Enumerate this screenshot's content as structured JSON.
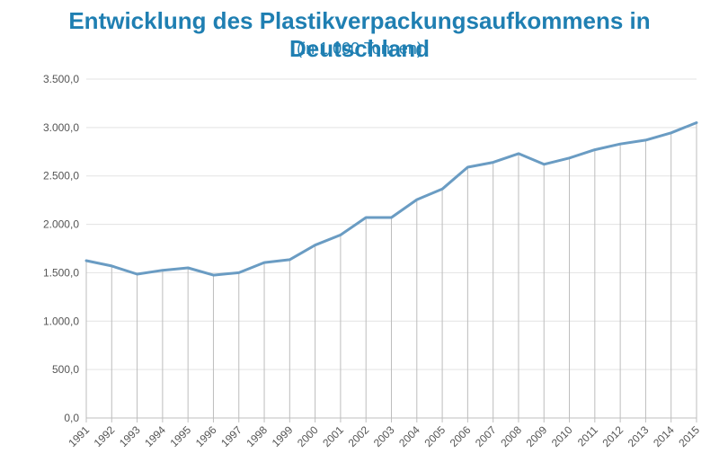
{
  "chart_data": {
    "type": "line",
    "title": "Entwicklung des Plastikverpackungsaufkommens in Deutschland",
    "subtitle": "(in 1.000 Tonnen)",
    "xlabel": "",
    "ylabel": "",
    "ylim": [
      0,
      3500
    ],
    "yticks": [
      "0,0",
      "500,0",
      "1.000,0",
      "1.500,0",
      "2.000,0",
      "2.500,0",
      "3.000,0",
      "3.500,0"
    ],
    "grid": "horizontal",
    "drop_lines": true,
    "line_color": "#6a9cc3",
    "categories": [
      "1991",
      "1992",
      "1993",
      "1994",
      "1995",
      "1996",
      "1997",
      "1998",
      "1999",
      "2000",
      "2001",
      "2002",
      "2003",
      "2004",
      "2005",
      "2006",
      "2007",
      "2008",
      "2009",
      "2010",
      "2011",
      "2012",
      "2013",
      "2014",
      "2015"
    ],
    "values": [
      1625,
      1570,
      1485,
      1525,
      1550,
      1475,
      1500,
      1605,
      1635,
      1785,
      1890,
      2070,
      2070,
      2255,
      2365,
      2590,
      2640,
      2730,
      2620,
      2685,
      2770,
      2830,
      2870,
      2945,
      3050
    ]
  }
}
